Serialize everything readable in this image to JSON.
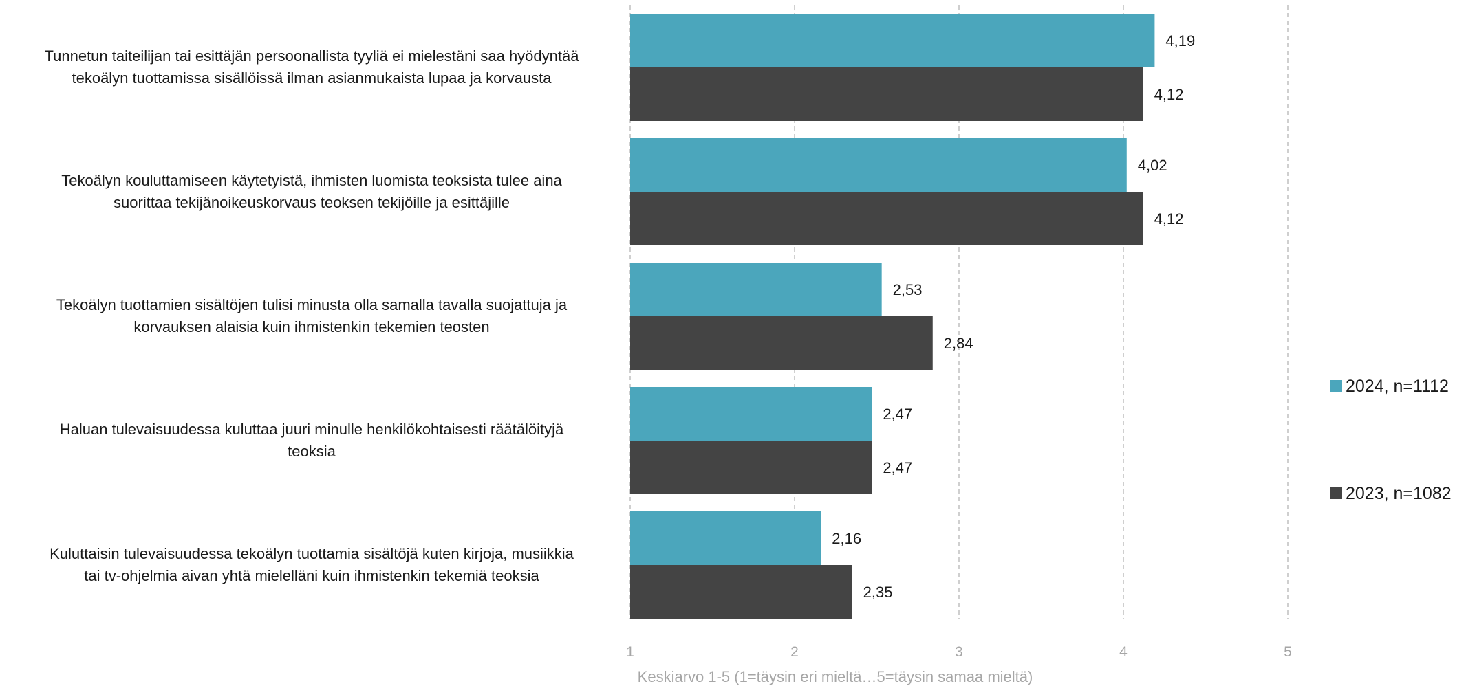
{
  "chart_data": {
    "type": "bar",
    "orientation": "horizontal",
    "categories": [
      [
        "Tunnetun taiteilijan tai esittäjän persoonallista tyyliä ei mielestäni saa hyödyntää",
        "tekoälyn tuottamissa sisällöissä ilman asianmukaista lupaa ja korvausta"
      ],
      [
        "Tekoälyn kouluttamiseen käytetyistä, ihmisten luomista teoksista tulee aina",
        "suorittaa tekijänoikeuskorvaus teoksen tekijöille ja esittäjille"
      ],
      [
        "Tekoälyn tuottamien sisältöjen tulisi minusta olla samalla tavalla suojattuja ja",
        "korvauksen alaisia kuin ihmistenkin tekemien teosten"
      ],
      [
        "Haluan tulevaisuudessa kuluttaa juuri minulle henkilökohtaisesti räätälöityjä",
        "teoksia"
      ],
      [
        "Kuluttaisin tulevaisuudessa tekoälyn tuottamia sisältöjä kuten kirjoja, musiikkia",
        "tai tv-ohjelmia aivan yhtä mielelläni kuin ihmistenkin tekemiä teoksia"
      ]
    ],
    "series": [
      {
        "name": "2024, n=1112",
        "color": "#4ba6bc",
        "values": [
          4.19,
          4.02,
          2.53,
          2.47,
          2.16
        ],
        "labels": [
          "4,19",
          "4,02",
          "2,53",
          "2,47",
          "2,16"
        ]
      },
      {
        "name": "2023, n=1082",
        "color": "#444444",
        "values": [
          4.12,
          4.12,
          2.84,
          2.47,
          2.35
        ],
        "labels": [
          "4,12",
          "4,12",
          "2,84",
          "2,47",
          "2,35"
        ]
      }
    ],
    "xlabel": "Keskiarvo 1-5 (1=täysin eri mieltä…5=täysin samaa mieltä)",
    "xlim": [
      1,
      5
    ],
    "xticks": [
      "1",
      "2",
      "3",
      "4",
      "5"
    ],
    "grid": "vertical dashed",
    "legend_position": "right"
  }
}
